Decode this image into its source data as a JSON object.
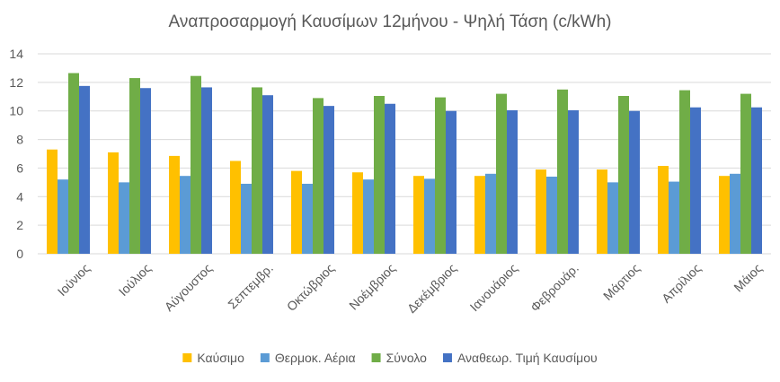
{
  "chart_data": {
    "type": "bar",
    "title": "Αναπροσαρμογή Καυσίμων 12μήνου - Ψηλή Τάση  (c/kWh)",
    "xlabel": "",
    "ylabel": "",
    "ylim": [
      0,
      14
    ],
    "yticks": [
      0,
      2,
      4,
      6,
      8,
      10,
      12,
      14
    ],
    "grid": true,
    "legend_position": "bottom",
    "categories": [
      "Ιούνιος",
      "Ιούλιος",
      "Αύγουστος",
      "Σεπτεμβρ.",
      "Οκτώβριος",
      "Νοέμβριος",
      "Δεκέμβριος",
      "Ιανουάριος",
      "Φεβρουάρ.",
      "Μάρτιος",
      "Απρίλιος",
      "Μάιος"
    ],
    "series": [
      {
        "name": "Καύσιμο",
        "color": "#FFC000",
        "values": [
          7.3,
          7.1,
          6.85,
          6.5,
          5.8,
          5.7,
          5.45,
          5.45,
          5.9,
          5.9,
          6.15,
          5.45
        ]
      },
      {
        "name": "Θερμοκ. Αέρια",
        "color": "#5B9BD5",
        "values": [
          5.2,
          5.0,
          5.45,
          4.9,
          4.9,
          5.2,
          5.25,
          5.6,
          5.4,
          5.0,
          5.05,
          5.6
        ]
      },
      {
        "name": "Σύνολο",
        "color": "#70AD47",
        "values": [
          12.65,
          12.3,
          12.45,
          11.65,
          10.9,
          11.05,
          10.95,
          11.2,
          11.5,
          11.05,
          11.45,
          11.2
        ]
      },
      {
        "name": "Αναθεωρ. Τιμή Καυσίμου",
        "color": "#4472C4",
        "values": [
          11.75,
          11.6,
          11.65,
          11.1,
          10.35,
          10.5,
          10.0,
          10.05,
          10.05,
          10.0,
          10.25,
          10.25
        ]
      }
    ]
  }
}
